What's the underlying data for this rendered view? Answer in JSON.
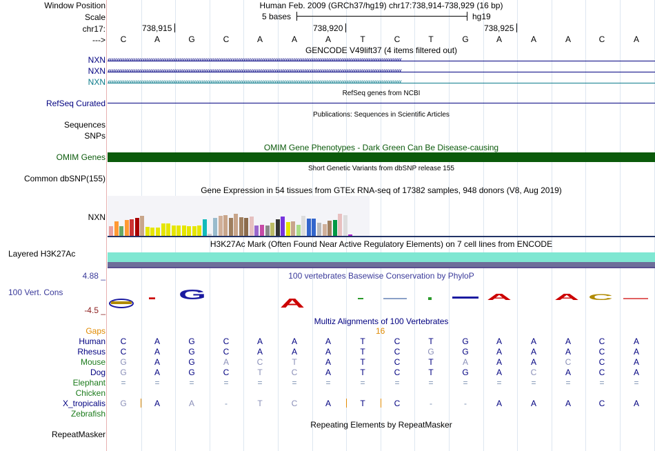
{
  "labels": {
    "window_position": "Window Position",
    "scale": "Scale",
    "chrom": "chr17:",
    "strand": "--->",
    "nxn1": "NXN",
    "nxn2": "NXN",
    "nxn3": "NXN",
    "refseq": "RefSeq Curated",
    "sequences": "Sequences",
    "snps": "SNPs",
    "omim": "OMIM Genes",
    "dbsnp": "Common dbSNP(155)",
    "gtex": "NXN",
    "h3k27ac": "Layered H3K27Ac",
    "cons_max": "4.88 _",
    "cons": "100 Vert. Cons",
    "cons_min": "-4.5 _",
    "gaps": "Gaps",
    "human": "Human",
    "rhesus": "Rhesus",
    "mouse": "Mouse",
    "dog": "Dog",
    "elephant": "Elephant",
    "chicken": "Chicken",
    "xtrop": "X_tropicalis",
    "zebrafish": "Zebrafish",
    "repeatmasker": "RepeatMasker"
  },
  "header": {
    "position": "Human Feb. 2009 (GRCh37/hg19)   chr17:738,914-738,929 (16 bp)",
    "scale_text": "5 bases",
    "assembly": "hg19",
    "coords": [
      "738,915",
      "738,920",
      "738,925"
    ]
  },
  "sequence": [
    "C",
    "A",
    "G",
    "C",
    "A",
    "A",
    "A",
    "T",
    "C",
    "T",
    "G",
    "A",
    "A",
    "A",
    "C",
    "A"
  ],
  "tracks": {
    "gencode": "GENCODE V49lift37 (4 items filtered out)",
    "refseq": "RefSeq genes from NCBI",
    "publications": "Publications: Sequences in Scientific Articles",
    "omim": "OMIM Gene Phenotypes - Dark Green Can Be Disease-causing",
    "dbsnp": "Short Genetic Variants from dbSNP release 155",
    "gtex": "Gene Expression in 54 tissues from GTEx RNA-seq of 17382 samples, 948 donors (V8, Aug 2019)",
    "h3k27ac": "H3K27Ac Mark (Often Found Near Active Regulatory Elements) on 7 cell lines from ENCODE",
    "phylop": "100 vertebrates Basewise Conservation by PhyloP",
    "multiz": "Multiz Alignments of 100 Vertebrates",
    "repeatmasker": "Repeating Elements by RepeatMasker"
  },
  "gaps_value": "16",
  "alignment": {
    "Rhesus": [
      "C",
      "A",
      "G",
      "C",
      "A",
      "A",
      "A",
      "T",
      "C",
      "G",
      "G",
      "A",
      "A",
      "A",
      "C",
      "A"
    ],
    "Mouse": [
      "G",
      "A",
      "G",
      "A",
      "C",
      "T",
      "A",
      "T",
      "C",
      "T",
      "A",
      "A",
      "A",
      "C",
      "C",
      "A"
    ],
    "Dog": [
      "G",
      "A",
      "G",
      "C",
      "T",
      "C",
      "A",
      "T",
      "C",
      "T",
      "G",
      "A",
      "C",
      "A",
      "C",
      "A"
    ],
    "Elephant": [
      "=",
      "=",
      "=",
      "=",
      "=",
      "=",
      "=",
      "=",
      "=",
      "=",
      "=",
      "=",
      "=",
      "=",
      "=",
      "="
    ],
    "X_tropicalis": [
      "G",
      "A",
      "A",
      "-",
      "T",
      "C",
      "A",
      "T",
      "C",
      "-",
      "-",
      "A",
      "A",
      "A",
      "C",
      "A"
    ]
  },
  "colors": {
    "navy": "#000080",
    "omim": "#0b5a0b",
    "h3k27ac": "#7fe7d2",
    "purple": "#5a4f8f",
    "phylop": "#3a3a9a",
    "gaps": "#e08a00",
    "green": "#1a7a1a",
    "teal": "#0a7a8a"
  },
  "gtex_bars": [
    {
      "v": 0.24,
      "c": "#e8a0a0"
    },
    {
      "v": 0.36,
      "c": "#ff9933"
    },
    {
      "v": 0.24,
      "c": "#66aa66"
    },
    {
      "v": 0.4,
      "c": "#ff9933"
    },
    {
      "v": 0.42,
      "c": "#cc3333"
    },
    {
      "v": 0.45,
      "c": "#aa0000"
    },
    {
      "v": 0.5,
      "c": "#c8a58a"
    },
    {
      "v": 0.23,
      "c": "#e6e600"
    },
    {
      "v": 0.21,
      "c": "#e6e600"
    },
    {
      "v": 0.21,
      "c": "#e6e600"
    },
    {
      "v": 0.31,
      "c": "#e6e600"
    },
    {
      "v": 0.31,
      "c": "#e6e600"
    },
    {
      "v": 0.25,
      "c": "#e6e600"
    },
    {
      "v": 0.26,
      "c": "#e6e600"
    },
    {
      "v": 0.25,
      "c": "#e6e600"
    },
    {
      "v": 0.24,
      "c": "#e6e600"
    },
    {
      "v": 0.24,
      "c": "#e6e600"
    },
    {
      "v": 0.25,
      "c": "#e6e600"
    },
    {
      "v": 0.41,
      "c": "#11bbbb"
    },
    {
      "v": 0.05,
      "c": "#cccccc"
    },
    {
      "v": 0.45,
      "c": "#99bbcc"
    },
    {
      "v": 0.5,
      "c": "#d0b09a"
    },
    {
      "v": 0.52,
      "c": "#c8a58a"
    },
    {
      "v": 0.44,
      "c": "#9e7e5e"
    },
    {
      "v": 0.55,
      "c": "#c8a58a"
    },
    {
      "v": 0.47,
      "c": "#a08060"
    },
    {
      "v": 0.44,
      "c": "#8b6b4b"
    },
    {
      "v": 0.48,
      "c": "#e6c0c0"
    },
    {
      "v": 0.26,
      "c": "#9966cc"
    },
    {
      "v": 0.27,
      "c": "#c64aa6"
    },
    {
      "v": 0.26,
      "c": "#888888"
    },
    {
      "v": 0.33,
      "c": "#bbbb66"
    },
    {
      "v": 0.42,
      "c": "#333333"
    },
    {
      "v": 0.48,
      "c": "#7733dd"
    },
    {
      "v": 0.35,
      "c": "#e6e600"
    },
    {
      "v": 0.37,
      "c": "#c8a58a"
    },
    {
      "v": 0.27,
      "c": "#aadd88"
    },
    {
      "v": 0.5,
      "c": "#dddddd"
    },
    {
      "v": 0.43,
      "c": "#3366cc"
    },
    {
      "v": 0.43,
      "c": "#3366cc"
    },
    {
      "v": 0.33,
      "c": "#bbbbbb"
    },
    {
      "v": 0.3,
      "c": "#d0b09a"
    },
    {
      "v": 0.38,
      "c": "#a08060"
    },
    {
      "v": 0.39,
      "c": "#009944"
    },
    {
      "v": 0.55,
      "c": "#e8c0c0"
    },
    {
      "v": 0.52,
      "c": "#dddddd"
    },
    {
      "v": 0.04,
      "c": "#aa22cc"
    }
  ]
}
